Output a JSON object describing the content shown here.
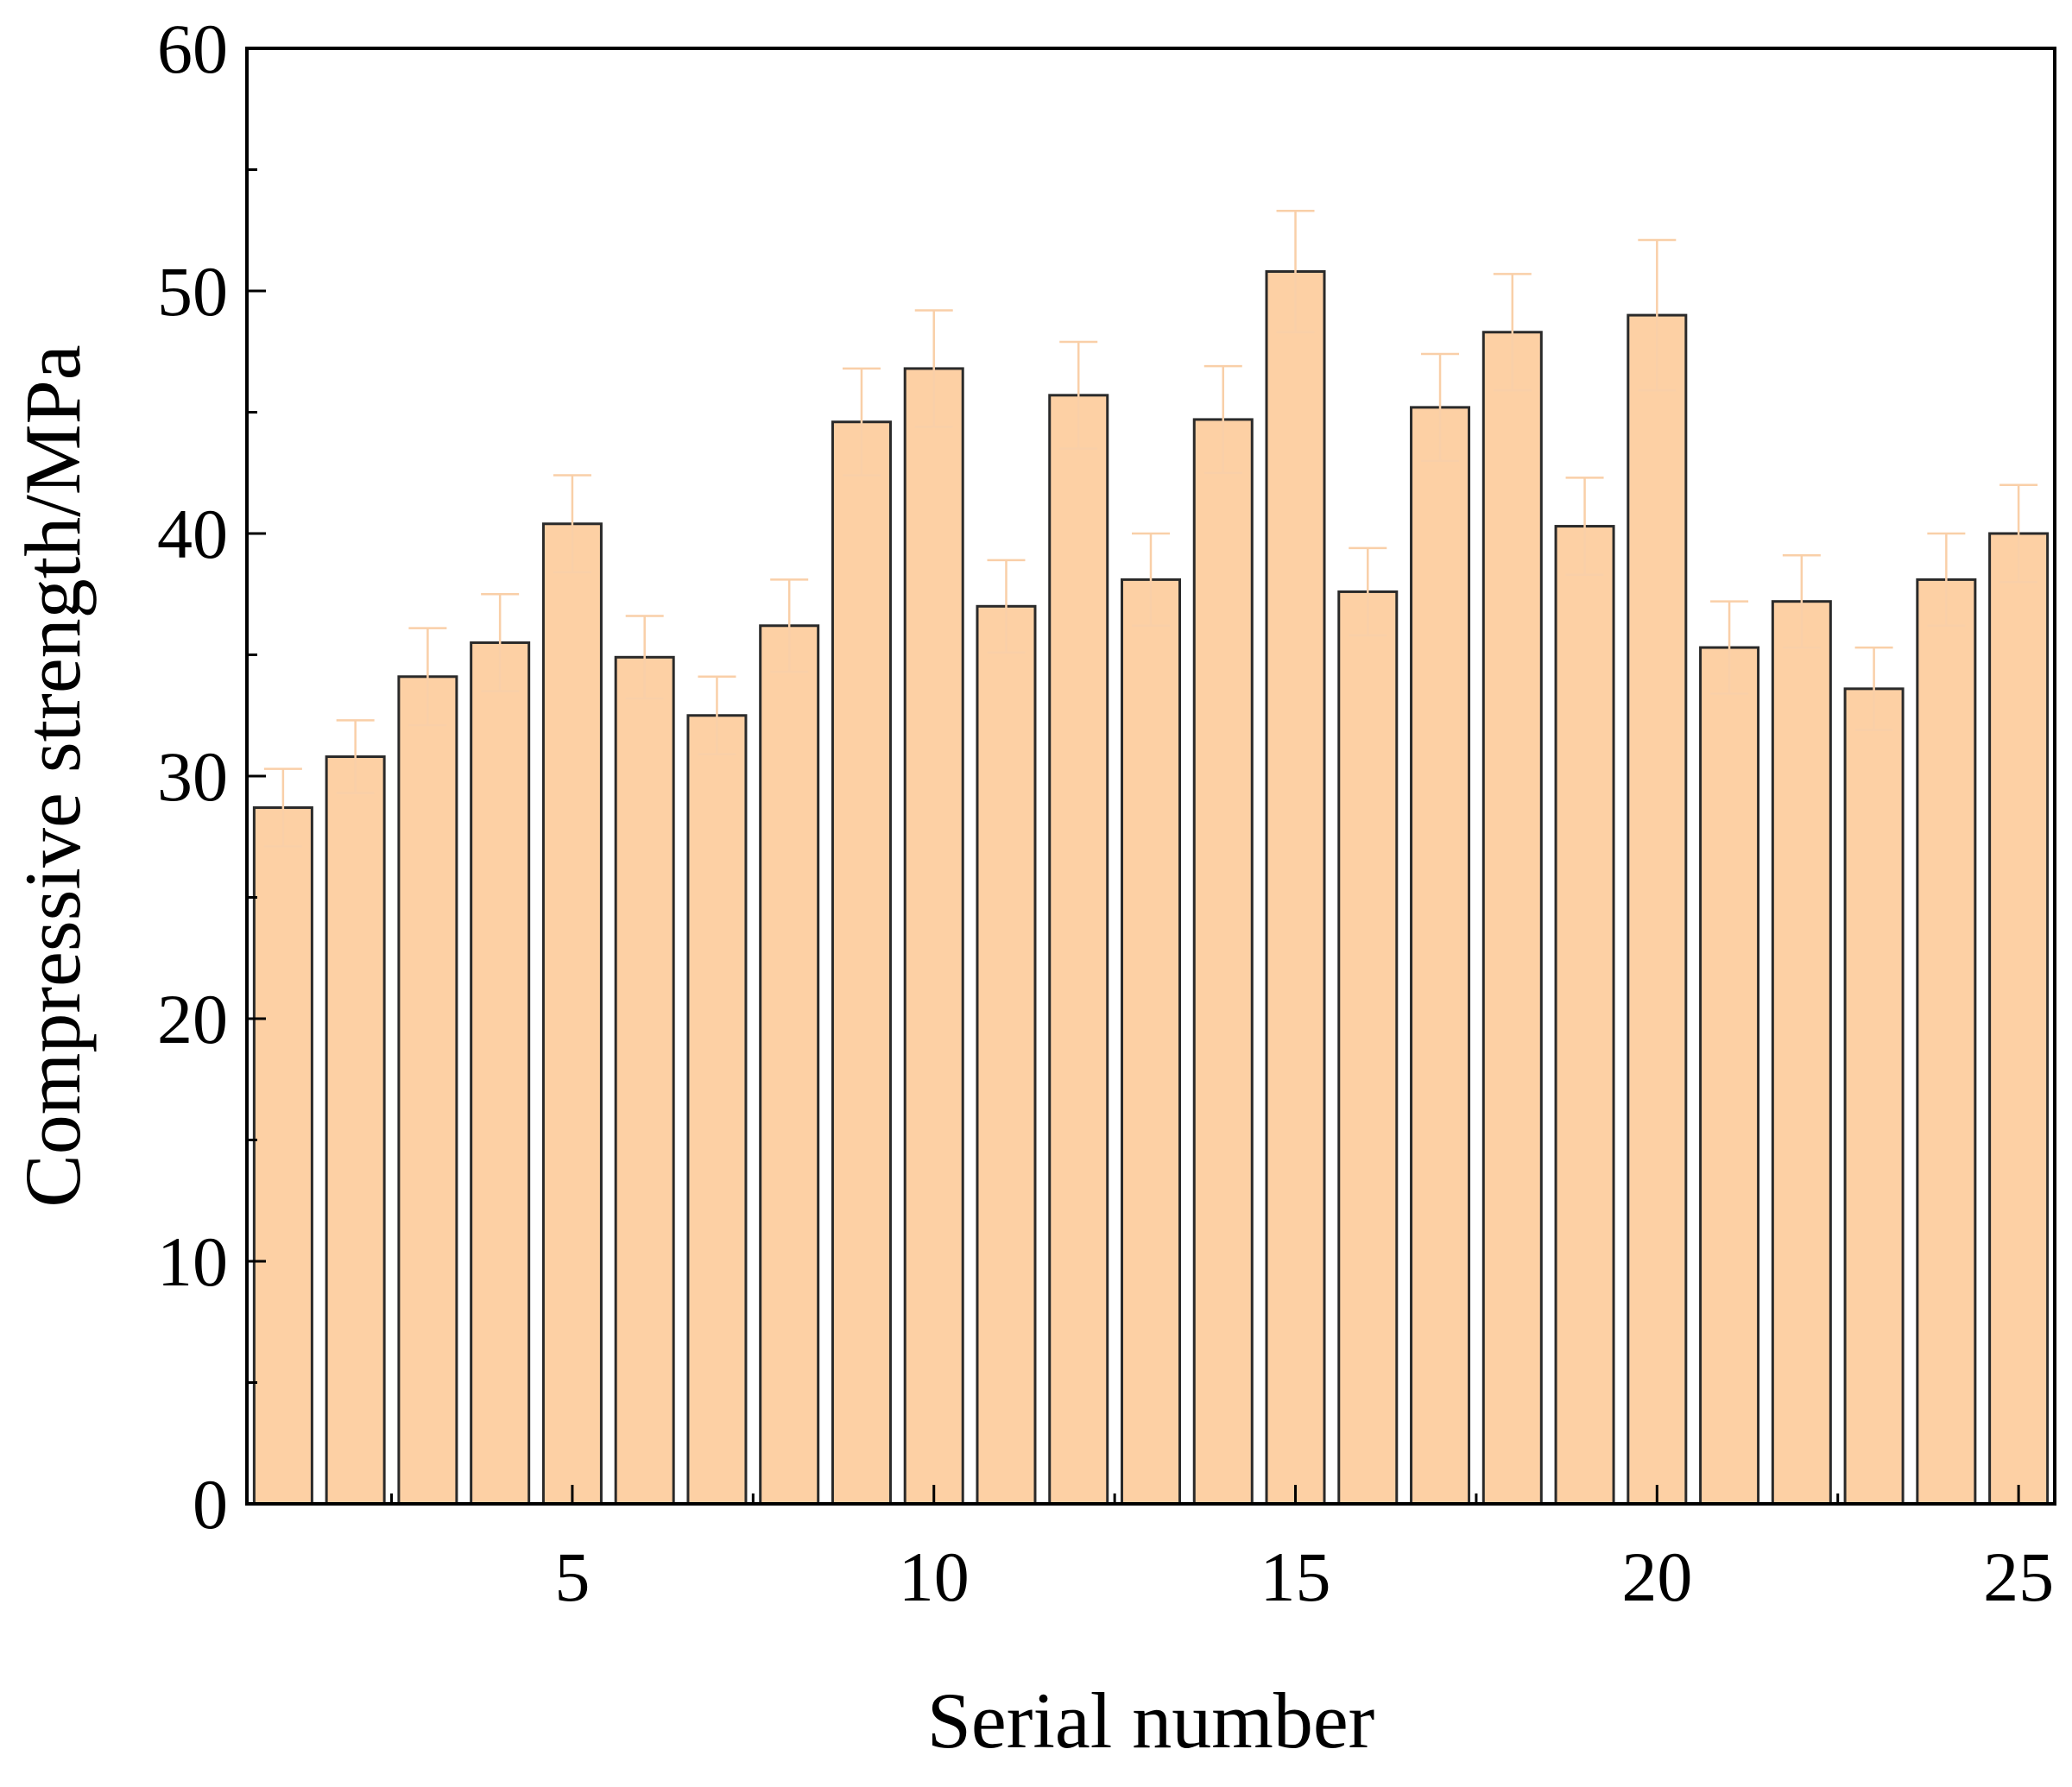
{
  "chart_data": {
    "type": "bar",
    "xlabel": "Serial number",
    "ylabel": "Compressive strength/MPa",
    "categories": [
      1,
      2,
      3,
      4,
      5,
      6,
      7,
      8,
      9,
      10,
      11,
      12,
      13,
      14,
      15,
      16,
      17,
      18,
      19,
      20,
      21,
      22,
      23,
      24,
      25
    ],
    "values": [
      28.7,
      30.8,
      34.1,
      35.5,
      40.4,
      34.9,
      32.5,
      36.2,
      44.6,
      46.8,
      37.0,
      45.7,
      38.1,
      44.7,
      50.8,
      37.6,
      45.2,
      48.3,
      40.3,
      49.0,
      35.3,
      37.2,
      33.6,
      38.1,
      40.0
    ],
    "errors": [
      1.6,
      1.5,
      2.0,
      2.0,
      2.0,
      1.7,
      1.6,
      1.9,
      2.2,
      2.4,
      1.9,
      2.2,
      1.9,
      2.2,
      2.5,
      1.8,
      2.2,
      2.4,
      2.0,
      3.1,
      1.9,
      1.9,
      1.7,
      1.9,
      2.0
    ],
    "xticks": [
      5,
      10,
      15,
      20,
      25
    ],
    "yticks": [
      0,
      10,
      20,
      30,
      40,
      50,
      60
    ],
    "xlim": [
      0.5,
      25.5
    ],
    "ylim": [
      0,
      60
    ],
    "grid": false,
    "colors": {
      "bar_fill": "#fdd0a4",
      "bar_stroke": "#2a2a2a",
      "error_bar": "#f9cfa8",
      "axis": "#000000"
    }
  }
}
